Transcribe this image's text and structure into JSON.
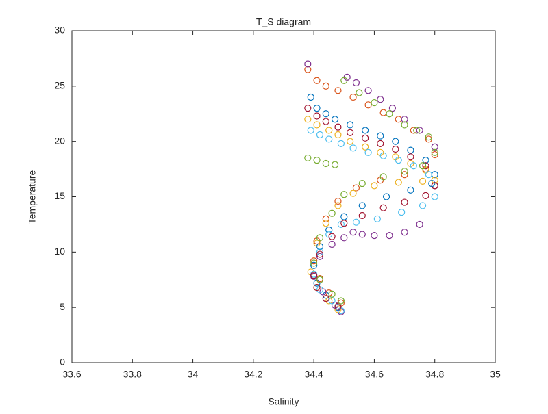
{
  "chart_data": {
    "type": "scatter",
    "title": "T_S diagram",
    "xlabel": "Salinity",
    "ylabel": "Temperature",
    "xlim": [
      33.6,
      35
    ],
    "xticks": [
      33.6,
      33.8,
      34,
      34.2,
      34.4,
      34.6,
      34.8,
      35
    ],
    "ylim": [
      0,
      30
    ],
    "yticks": [
      0,
      5,
      10,
      15,
      20,
      25,
      30
    ],
    "series": [
      {
        "color": "#0072BD",
        "x": [
          34.39,
          34.41,
          34.44,
          34.47,
          34.52,
          34.57,
          34.62,
          34.67,
          34.72,
          34.77,
          34.8,
          34.79,
          34.72,
          34.64,
          34.56,
          34.5,
          34.45,
          34.42,
          34.4,
          34.41,
          34.44,
          34.48
        ],
        "values": [
          24,
          23,
          22.5,
          22,
          21.5,
          21,
          20.5,
          20,
          19.2,
          18.3,
          17,
          16.2,
          15.6,
          15,
          14.2,
          13.2,
          12,
          10.5,
          8.8,
          7.2,
          6.1,
          5
        ]
      },
      {
        "color": "#D95319",
        "x": [
          34.38,
          34.41,
          34.44,
          34.48,
          34.53,
          34.58,
          34.63,
          34.68,
          34.73,
          34.78,
          34.8,
          34.77,
          34.7,
          34.62,
          34.54,
          34.48,
          34.44,
          34.41,
          34.4,
          34.42,
          34.45,
          34.49
        ],
        "values": [
          26.5,
          25.5,
          25,
          24.6,
          24,
          23.3,
          22.6,
          22,
          21,
          20.2,
          18.8,
          17.5,
          17,
          16.5,
          15.8,
          14.6,
          13,
          11,
          9.2,
          7.6,
          6.3,
          5.4
        ]
      },
      {
        "color": "#EDB120",
        "x": [
          34.38,
          34.41,
          34.45,
          34.48,
          34.52,
          34.57,
          34.62,
          34.67,
          34.72,
          34.77,
          34.8,
          34.76,
          34.68,
          34.6,
          34.53,
          34.48,
          34.44,
          34.41,
          34.39,
          34.41,
          34.45,
          34.48
        ],
        "values": [
          22,
          21.5,
          21,
          20.6,
          20,
          19.5,
          19,
          18.6,
          18,
          17.4,
          16.5,
          16.4,
          16.3,
          16,
          15.3,
          14.2,
          12.6,
          10.8,
          8.2,
          6.8,
          5.6,
          4.8
        ]
      },
      {
        "color": "#7E2F8E",
        "x": [
          34.38,
          34.51,
          34.54,
          34.58,
          34.62,
          34.66,
          34.7,
          34.75,
          34.8,
          34.8,
          34.75,
          34.7,
          34.65,
          34.6,
          34.56,
          34.53,
          34.5,
          34.46,
          34.42,
          34.4,
          34.43,
          34.47,
          34.49
        ],
        "values": [
          27,
          25.8,
          25.3,
          24.6,
          23.8,
          23,
          22,
          21,
          19.5,
          16,
          12.5,
          11.8,
          11.5,
          11.5,
          11.6,
          11.8,
          11.3,
          10.7,
          9.6,
          7.8,
          6.4,
          5.2,
          4.6
        ]
      },
      {
        "color": "#4DBEEE",
        "x": [
          34.39,
          34.42,
          34.45,
          34.49,
          34.53,
          34.58,
          34.63,
          34.68,
          34.73,
          34.78,
          34.8,
          34.76,
          34.69,
          34.61,
          34.54,
          34.49,
          34.45,
          34.42,
          34.4,
          34.42,
          34.46,
          34.49
        ],
        "values": [
          21,
          20.6,
          20.2,
          19.8,
          19.4,
          19,
          18.7,
          18.3,
          17.8,
          17,
          15,
          14.2,
          13.6,
          13,
          12.7,
          12.5,
          11.6,
          10,
          8,
          6.6,
          5.6,
          4.7
        ]
      },
      {
        "color": "#A2142F",
        "x": [
          34.38,
          34.41,
          34.44,
          34.48,
          34.52,
          34.57,
          34.62,
          34.67,
          34.72,
          34.77,
          34.8,
          34.77,
          34.7,
          34.63,
          34.56,
          34.5,
          34.46,
          34.42,
          34.4,
          34.41,
          34.44,
          34.48
        ],
        "values": [
          23,
          22.3,
          21.8,
          21.3,
          20.8,
          20.3,
          19.8,
          19.3,
          18.6,
          17.8,
          16,
          15.1,
          14.5,
          14,
          13.3,
          12.6,
          11.4,
          9.8,
          7.9,
          6.8,
          5.8,
          5.1
        ]
      },
      {
        "color": "#77AC30",
        "x": [
          34.38,
          34.41,
          34.44,
          34.47,
          34.5,
          34.55,
          34.6,
          34.65,
          34.7,
          34.74,
          34.78,
          34.8,
          34.76,
          34.7,
          34.63,
          34.56,
          34.5,
          34.46,
          34.42,
          34.4,
          34.42,
          34.46,
          34.49
        ],
        "values": [
          18.5,
          18.3,
          18,
          17.9,
          25.5,
          24.4,
          23.5,
          22.5,
          21.5,
          21,
          20.4,
          19,
          17.8,
          17.3,
          16.8,
          16.2,
          15.2,
          13.5,
          11.3,
          9,
          7.5,
          6.2,
          5.6
        ]
      }
    ]
  }
}
